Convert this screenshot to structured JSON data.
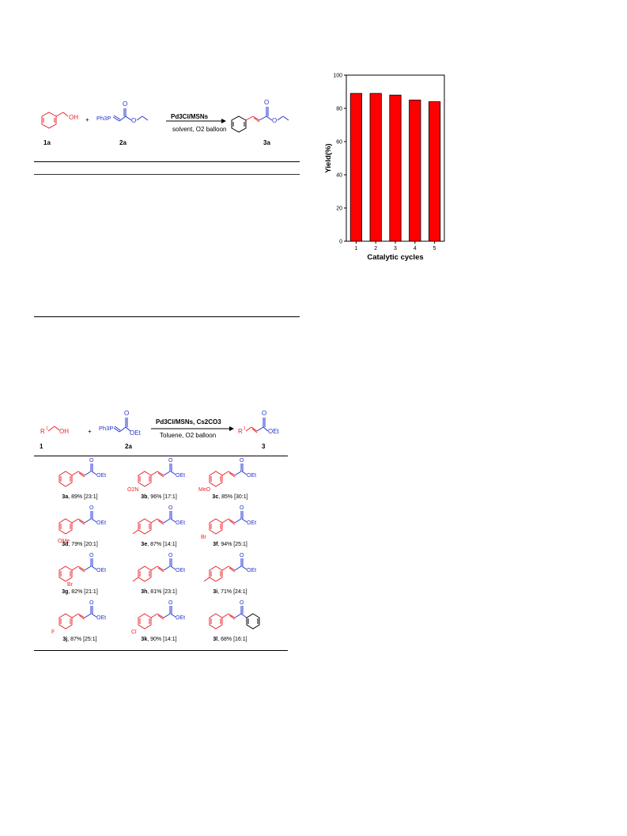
{
  "scheme1": {
    "catalyst": "Pd3Cl/MSNs",
    "conditions": "solvent, O2 balloon",
    "reagent_label": "Ph3P",
    "oh_label": "OH",
    "o_label": "O",
    "plus": "+",
    "compound_labels": [
      "1a",
      "2a",
      "3a"
    ]
  },
  "scheme2": {
    "catalyst": "Pd3Cl/MSNs, Cs2CO3",
    "conditions": "Toluene, O2 balloon",
    "r_label": "R",
    "r_sup": "1",
    "oh_label": "OH",
    "o_label": "O",
    "oet_label": "OEt",
    "reagent_label": "Ph3P",
    "plus": "+",
    "compound_labels": [
      "1",
      "2a",
      "3"
    ]
  },
  "products": [
    {
      "id": "3a",
      "yield": "89% [23:1]",
      "sub": ""
    },
    {
      "id": "3b",
      "yield": "96% [17:1]",
      "sub": "O2N"
    },
    {
      "id": "3c",
      "yield": "85% [30:1]",
      "sub": "MeO"
    },
    {
      "id": "3d",
      "yield": "79% [20:1]",
      "sub": "OMe"
    },
    {
      "id": "3e",
      "yield": "87% [14:1]",
      "sub": ""
    },
    {
      "id": "3f",
      "yield": "94% [25:1]",
      "sub": "Br"
    },
    {
      "id": "3g",
      "yield": "82% [21:1]",
      "sub": "Br"
    },
    {
      "id": "3h",
      "yield": "81% [23:1]",
      "sub": ""
    },
    {
      "id": "3i",
      "yield": "71% [24:1]",
      "sub": ""
    },
    {
      "id": "3j",
      "yield": "87% [25:1]",
      "sub": "F"
    },
    {
      "id": "3k",
      "yield": "90% [14:1]",
      "sub": "Cl"
    },
    {
      "id": "3l",
      "yield": "68% [16:1]",
      "sub": ""
    }
  ],
  "chart_data": {
    "type": "bar",
    "categories": [
      "1",
      "2",
      "3",
      "4",
      "5"
    ],
    "values": [
      89,
      89,
      88,
      85,
      84
    ],
    "xlabel": "Catalytic cycles",
    "ylabel": "Yield(%)",
    "ylim": [
      0,
      100
    ],
    "yticks": [
      "0",
      "20",
      "40",
      "60",
      "80",
      "100"
    ],
    "bar_color": "#ff0000",
    "grid": false
  }
}
